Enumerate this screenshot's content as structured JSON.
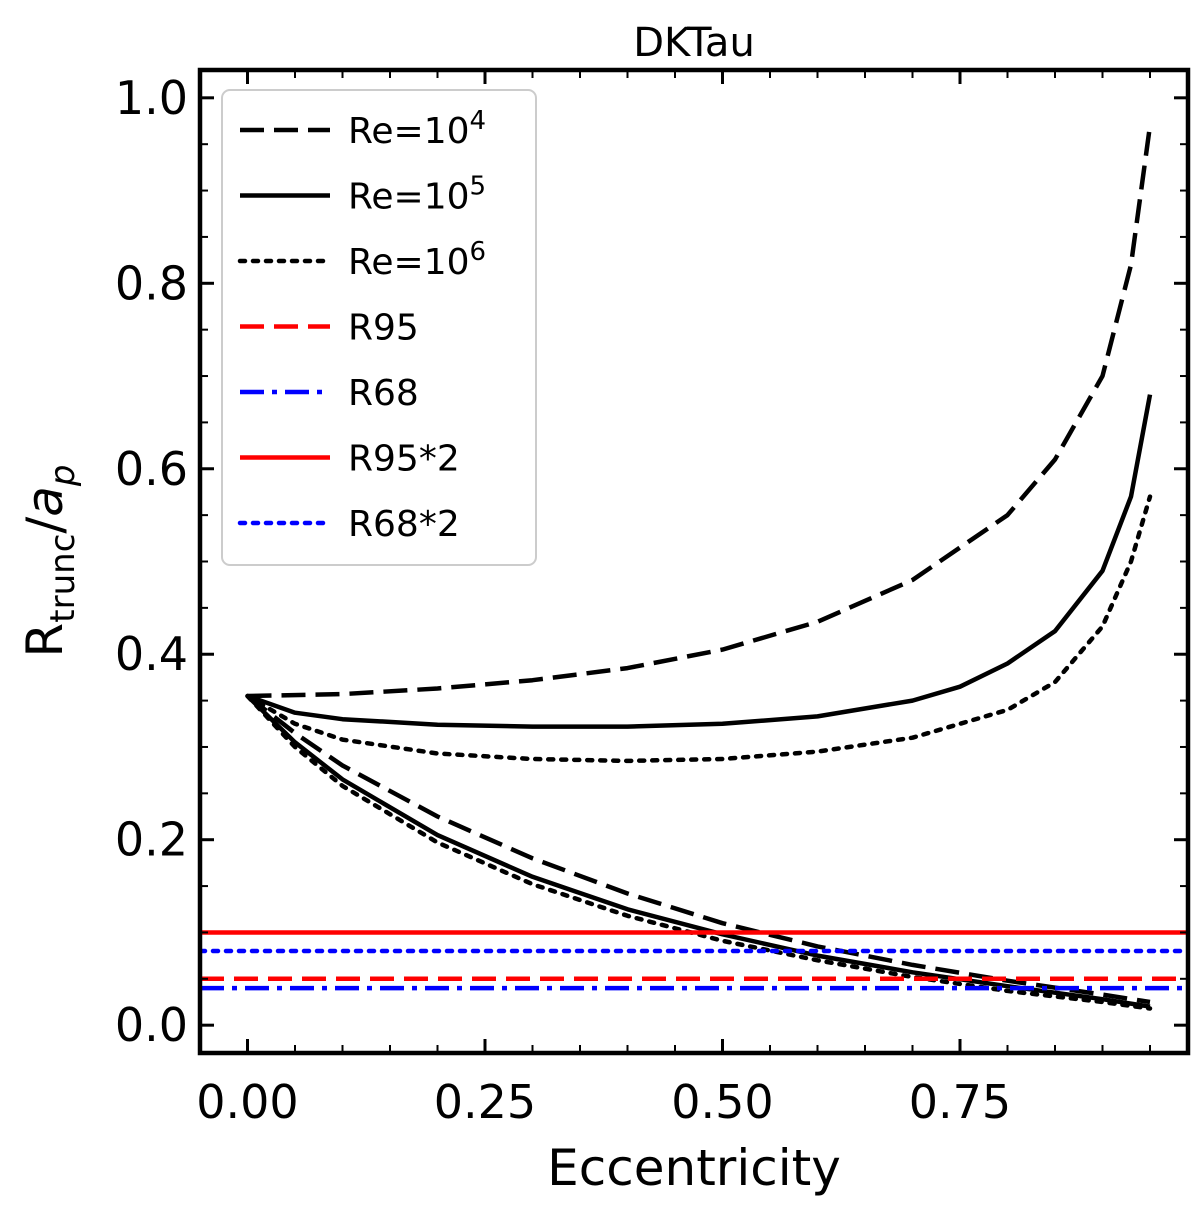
{
  "chart_data": {
    "type": "line",
    "title": "DKTau",
    "xlabel": "Eccentricity",
    "ylabel": {
      "base": "R",
      "sub": "trunc",
      "sep": "/",
      "italic": "a",
      "italic_sub": "p"
    },
    "xlim": [
      -0.05,
      0.99
    ],
    "ylim": [
      -0.03,
      1.03
    ],
    "xticks": [
      0.0,
      0.25,
      0.5,
      0.75
    ],
    "xtick_labels": [
      "0.00",
      "0.25",
      "0.50",
      "0.75"
    ],
    "yticks": [
      0.0,
      0.2,
      0.4,
      0.6,
      0.8,
      1.0
    ],
    "ytick_labels": [
      "0.0",
      "0.2",
      "0.4",
      "0.6",
      "0.8",
      "1.0"
    ],
    "grid": false,
    "legend_position": "top-left",
    "series": [
      {
        "name": "Re=10^4",
        "label_base": "Re=10",
        "label_sup": "4",
        "color": "#000000",
        "style": "dashed",
        "branches": [
          {
            "x": [
              0.0,
              0.1,
              0.2,
              0.3,
              0.4,
              0.5,
              0.6,
              0.7,
              0.8,
              0.85,
              0.9,
              0.93,
              0.95
            ],
            "y": [
              0.355,
              0.357,
              0.363,
              0.372,
              0.385,
              0.405,
              0.435,
              0.48,
              0.55,
              0.61,
              0.7,
              0.82,
              0.97
            ]
          },
          {
            "x": [
              0.0,
              0.05,
              0.1,
              0.2,
              0.3,
              0.4,
              0.5,
              0.6,
              0.7,
              0.8,
              0.9,
              0.95
            ],
            "y": [
              0.355,
              0.315,
              0.28,
              0.225,
              0.18,
              0.142,
              0.11,
              0.085,
              0.065,
              0.048,
              0.033,
              0.025
            ]
          }
        ]
      },
      {
        "name": "Re=10^5",
        "label_base": "Re=10",
        "label_sup": "5",
        "color": "#000000",
        "style": "solid",
        "branches": [
          {
            "x": [
              0.0,
              0.05,
              0.1,
              0.2,
              0.3,
              0.4,
              0.5,
              0.6,
              0.7,
              0.75,
              0.8,
              0.85,
              0.9,
              0.93,
              0.95
            ],
            "y": [
              0.355,
              0.337,
              0.33,
              0.324,
              0.322,
              0.322,
              0.325,
              0.333,
              0.35,
              0.365,
              0.39,
              0.425,
              0.49,
              0.57,
              0.68
            ]
          },
          {
            "x": [
              0.0,
              0.05,
              0.1,
              0.2,
              0.3,
              0.4,
              0.5,
              0.6,
              0.7,
              0.8,
              0.9,
              0.95
            ],
            "y": [
              0.355,
              0.305,
              0.265,
              0.205,
              0.16,
              0.125,
              0.098,
              0.075,
              0.057,
              0.042,
              0.028,
              0.02
            ]
          }
        ]
      },
      {
        "name": "Re=10^6",
        "label_base": "Re=10",
        "label_sup": "6",
        "color": "#000000",
        "style": "dotted",
        "branches": [
          {
            "x": [
              0.0,
              0.05,
              0.1,
              0.2,
              0.3,
              0.4,
              0.5,
              0.6,
              0.7,
              0.8,
              0.85,
              0.9,
              0.93,
              0.95
            ],
            "y": [
              0.355,
              0.325,
              0.308,
              0.293,
              0.287,
              0.285,
              0.287,
              0.295,
              0.31,
              0.34,
              0.37,
              0.43,
              0.5,
              0.57
            ]
          },
          {
            "x": [
              0.0,
              0.05,
              0.1,
              0.2,
              0.3,
              0.4,
              0.5,
              0.6,
              0.7,
              0.8,
              0.9,
              0.95
            ],
            "y": [
              0.355,
              0.3,
              0.258,
              0.197,
              0.152,
              0.118,
              0.091,
              0.07,
              0.052,
              0.037,
              0.025,
              0.018
            ]
          }
        ]
      },
      {
        "name": "R95",
        "color": "#ff0000",
        "style": "dashed",
        "hline": 0.05
      },
      {
        "name": "R68",
        "color": "#0000ff",
        "style": "dashdot",
        "hline": 0.04
      },
      {
        "name": "R95*2",
        "color": "#ff0000",
        "style": "solid",
        "hline": 0.1
      },
      {
        "name": "R68*2",
        "color": "#0000ff",
        "style": "dotted",
        "hline": 0.08
      }
    ]
  }
}
